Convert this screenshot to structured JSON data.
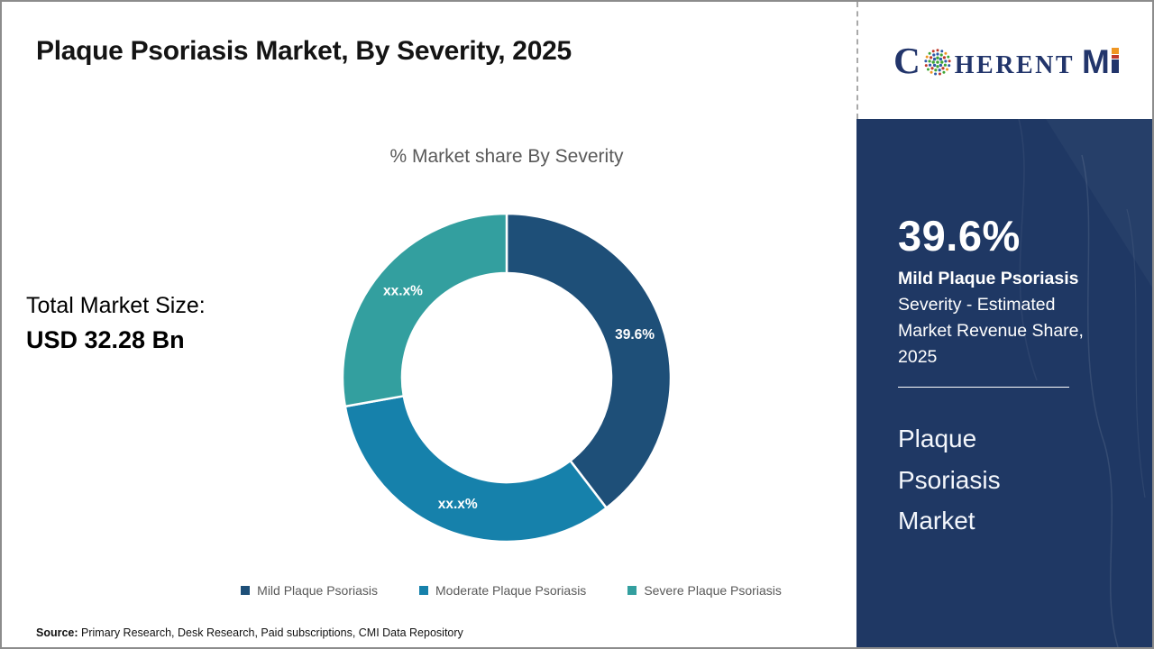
{
  "header": {
    "title": "Plaque Psoriasis Market, By Severity, 2025"
  },
  "logo": {
    "c": "C",
    "herent": "HERENT",
    "m": "M",
    "i": "I",
    "navy": "#22356b",
    "dot_colors": [
      "#3fa535",
      "#2e5aa8",
      "#c0392b",
      "#ef9623"
    ]
  },
  "left_panel": {
    "total_label": "Total Market Size:",
    "total_value": "USD 32.28 Bn"
  },
  "chart_data": {
    "type": "pie",
    "subtype": "donut",
    "title": "% Market share By Severity",
    "start_angle_deg": 0,
    "legend_position": "bottom",
    "segments": [
      {
        "name": "Mild Plaque Psoriasis",
        "value": 39.6,
        "label": "39.6%",
        "color": "#1e4f78"
      },
      {
        "name": "Moderate Plaque Psoriasis",
        "value": 32.6,
        "label": "xx.x%",
        "color": "#1681ab"
      },
      {
        "name": "Severe Plaque Psoriasis",
        "value": 27.8,
        "label": "xx.x%",
        "color": "#339f9f"
      }
    ]
  },
  "sidebar": {
    "bg_color": "#1f3864",
    "stat_value": "39.6%",
    "stat_bold_line": "Mild Plaque Psoriasis",
    "stat_desc_lines": [
      "Severity - Estimated",
      "Market Revenue Share,",
      "2025"
    ],
    "market_name_lines": [
      "Plaque",
      "Psoriasis",
      "Market"
    ]
  },
  "footer": {
    "source_label": "Source:",
    "source_text": " Primary Research, Desk Research, Paid subscriptions, CMI Data Repository"
  }
}
